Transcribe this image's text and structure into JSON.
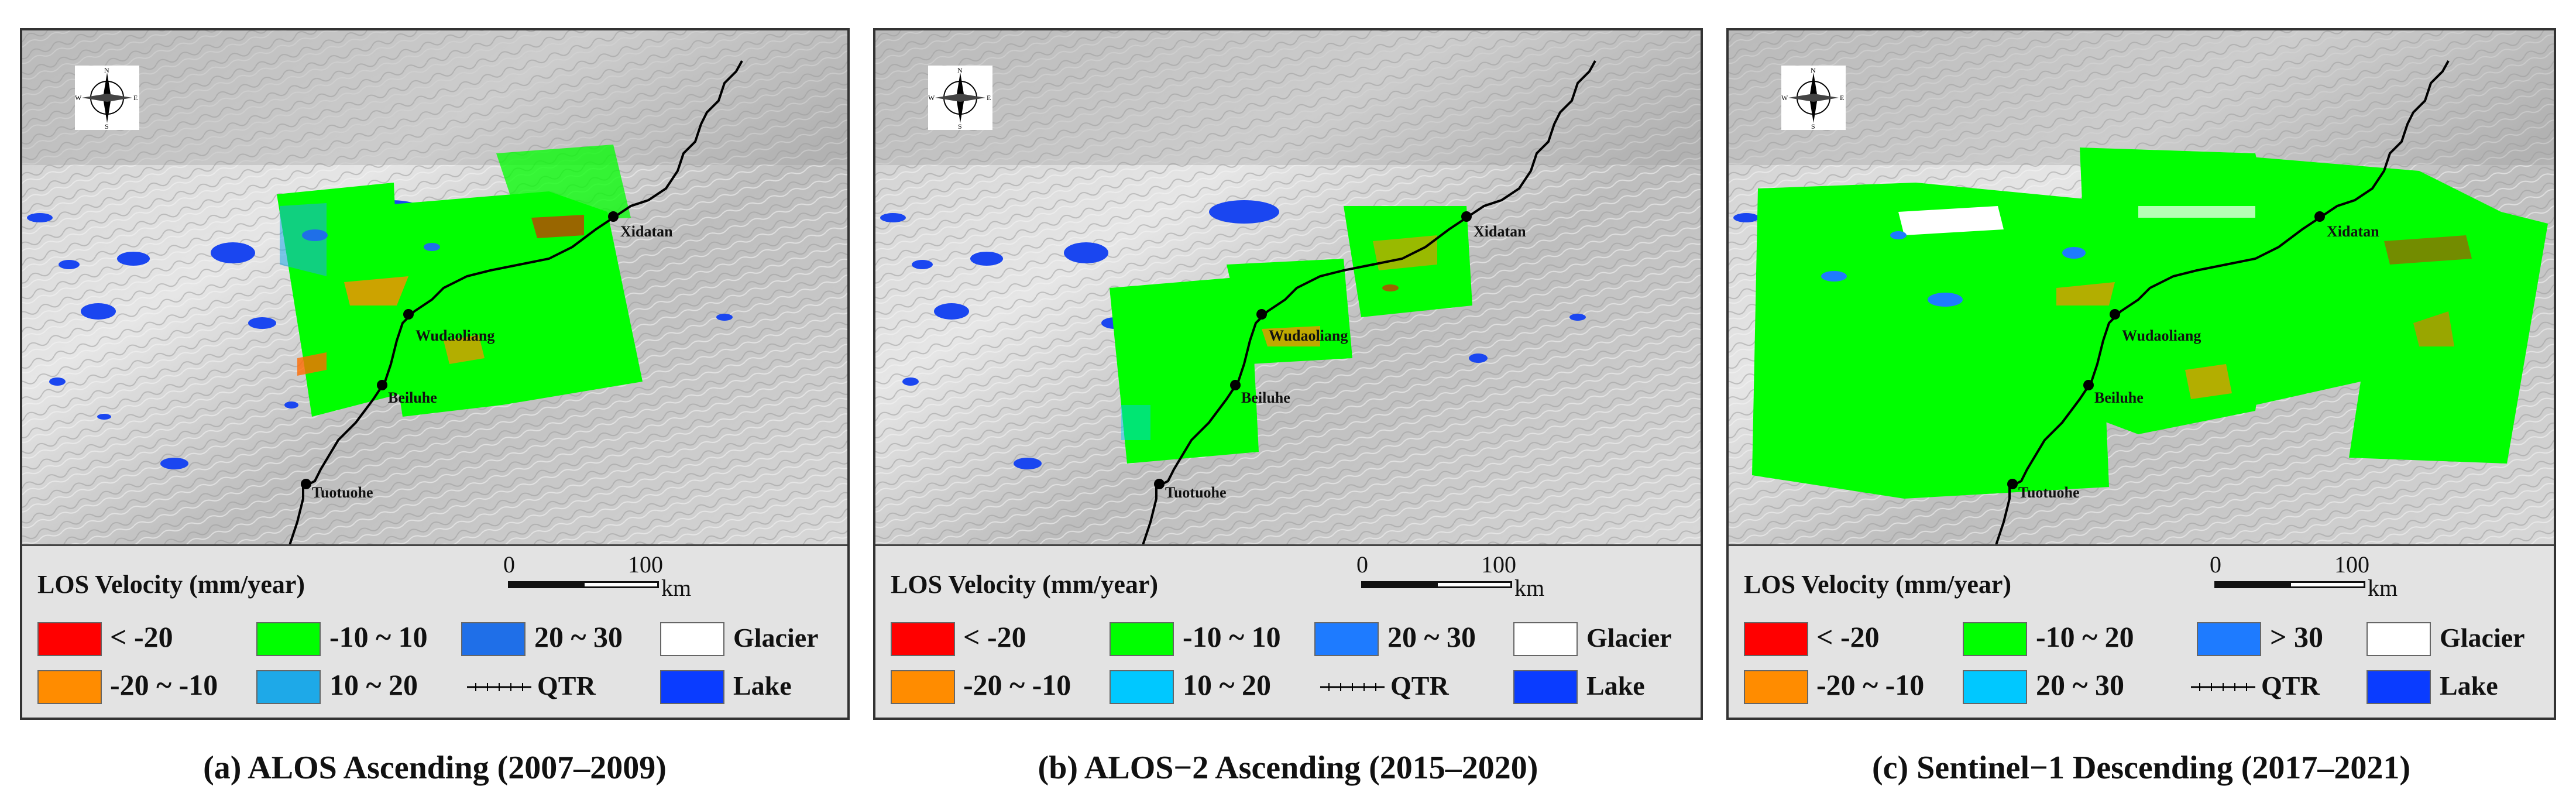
{
  "panels": [
    {
      "caption": "(a) ALOS Ascending (2007–2009)",
      "legend_title": "LOS Velocity (mm/year)",
      "scale_ticks": [
        "0",
        "100"
      ],
      "scale_unit": "km",
      "places": [
        "Xidatan",
        "Wudaoliang",
        "Beiluhe",
        "Tuotuohe"
      ],
      "compass": {
        "n": "N",
        "s": "S",
        "e": "E",
        "w": "W"
      },
      "legend": [
        {
          "label": "< -20",
          "color": "#ff0000"
        },
        {
          "label": "-10 ~ 10",
          "color": "#00ff00"
        },
        {
          "label": "20 ~ 30",
          "color": "#1f6fe8"
        },
        {
          "label": "Glacier",
          "color": "#ffffff"
        },
        {
          "label": "-20 ~ -10",
          "color": "#ff8c00"
        },
        {
          "label": "10 ~ 20",
          "color": "#1ea9e8"
        },
        {
          "label": "QTR",
          "color": "#000000"
        },
        {
          "label": "Lake",
          "color": "#0a3cff"
        }
      ]
    },
    {
      "caption": "(b) ALOS−2 Ascending (2015–2020)",
      "legend_title": "LOS Velocity (mm/year)",
      "scale_ticks": [
        "0",
        "100"
      ],
      "scale_unit": "km",
      "places": [
        "Xidatan",
        "Wudaoliang",
        "Beiluhe",
        "Tuotuohe"
      ],
      "compass": {
        "n": "N",
        "s": "S",
        "e": "E",
        "w": "W"
      },
      "legend": [
        {
          "label": "< -20",
          "color": "#ff0000"
        },
        {
          "label": "-10 ~ 10",
          "color": "#00ff00"
        },
        {
          "label": "20 ~ 30",
          "color": "#1e7bff"
        },
        {
          "label": "Glacier",
          "color": "#ffffff"
        },
        {
          "label": "-20 ~ -10",
          "color": "#ff8c00"
        },
        {
          "label": "10 ~ 20",
          "color": "#00c8ff"
        },
        {
          "label": "QTR",
          "color": "#000000"
        },
        {
          "label": "Lake",
          "color": "#0a3cff"
        }
      ]
    },
    {
      "caption": "(c) Sentinel−1 Descending (2017–2021)",
      "legend_title": "LOS Velocity (mm/year)",
      "scale_ticks": [
        "0",
        "100"
      ],
      "scale_unit": "km",
      "places": [
        "Xidatan",
        "Wudaoliang",
        "Beiluhe",
        "Tuotuohe"
      ],
      "compass": {
        "n": "N",
        "s": "S",
        "e": "E",
        "w": "W"
      },
      "legend": [
        {
          "label": "< -20",
          "color": "#ff0000"
        },
        {
          "label": "-10 ~ 20",
          "color": "#00ff00"
        },
        {
          "label": "> 30",
          "color": "#1e7bff"
        },
        {
          "label": "Glacier",
          "color": "#ffffff"
        },
        {
          "label": "-20 ~ -10",
          "color": "#ff8c00"
        },
        {
          "label": "20 ~ 30",
          "color": "#00c8ff"
        },
        {
          "label": "QTR",
          "color": "#000000"
        },
        {
          "label": "Lake",
          "color": "#0a3cff"
        }
      ]
    }
  ]
}
